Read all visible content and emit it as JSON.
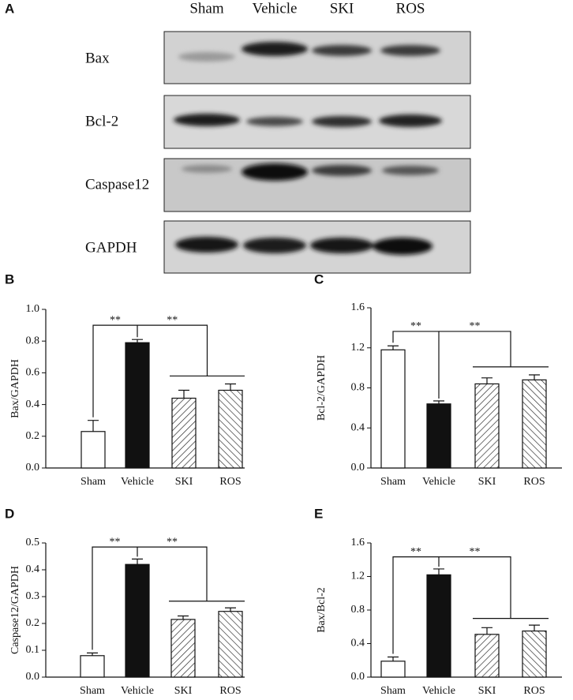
{
  "blot": {
    "panel_label": "A",
    "lanes": [
      "Sham",
      "Vehicle",
      "SKI",
      "ROS"
    ],
    "rows": [
      "Bax",
      "Bcl-2",
      "Caspase12",
      "GAPDH"
    ]
  },
  "chart_data": [
    {
      "type": "bar",
      "panel_label": "B",
      "ylabel": "Bax/GAPDH",
      "categories": [
        "Sham",
        "Vehicle",
        "SKI",
        "ROS"
      ],
      "values": [
        0.23,
        0.79,
        0.44,
        0.49
      ],
      "errors": [
        0.07,
        0.02,
        0.05,
        0.04
      ],
      "colors": [
        "#ffffff",
        "#111111",
        "#ffffff",
        "#ffffff"
      ],
      "hatch": [
        null,
        null,
        "down",
        "up"
      ],
      "ylim": [
        0,
        1.0
      ],
      "yticks": [
        {
          "value": 0,
          "label": "0.0"
        },
        {
          "value": 0.2,
          "label": "0.2"
        },
        {
          "value": 0.4,
          "label": "0.4"
        },
        {
          "value": 0.6,
          "label": "0.6"
        },
        {
          "value": 0.8,
          "label": "0.8"
        },
        {
          "value": 1.0,
          "label": "1.0"
        }
      ],
      "annotations": [
        "**",
        "**"
      ]
    },
    {
      "type": "bar",
      "panel_label": "C",
      "ylabel": "Bcl-2/GAPDH",
      "categories": [
        "Sham",
        "Vehicle",
        "SKI",
        "ROS"
      ],
      "values": [
        1.18,
        0.64,
        0.84,
        0.88
      ],
      "errors": [
        0.04,
        0.03,
        0.06,
        0.05
      ],
      "colors": [
        "#ffffff",
        "#111111",
        "#ffffff",
        "#ffffff"
      ],
      "hatch": [
        null,
        null,
        "down",
        "up"
      ],
      "ylim": [
        0,
        1.6
      ],
      "yticks": [
        {
          "value": 0,
          "label": "0.0"
        },
        {
          "value": 0.4,
          "label": "0.4"
        },
        {
          "value": 0.8,
          "label": "0.8"
        },
        {
          "value": 1.2,
          "label": "1.2"
        },
        {
          "value": 1.6,
          "label": "1.6"
        }
      ],
      "annotations": [
        "**",
        "**"
      ]
    },
    {
      "type": "bar",
      "panel_label": "D",
      "ylabel": "Caspase12/GAPDH",
      "categories": [
        "Sham",
        "Vehicle",
        "SKI",
        "ROS"
      ],
      "values": [
        0.08,
        0.42,
        0.215,
        0.245
      ],
      "errors": [
        0.01,
        0.02,
        0.013,
        0.013
      ],
      "colors": [
        "#ffffff",
        "#111111",
        "#ffffff",
        "#ffffff"
      ],
      "hatch": [
        null,
        null,
        "down",
        "up"
      ],
      "ylim": [
        0,
        0.5
      ],
      "yticks": [
        {
          "value": 0,
          "label": "0.0"
        },
        0.1,
        0.2,
        0.3,
        0.4,
        0.5
      ],
      "annotations": [
        "**",
        "**"
      ]
    },
    {
      "type": "bar",
      "panel_label": "E",
      "ylabel": "Bax/Bcl-2",
      "categories": [
        "Sham",
        "Vehicle",
        "SKI",
        "ROS"
      ],
      "values": [
        0.19,
        1.22,
        0.51,
        0.55
      ],
      "errors": [
        0.05,
        0.07,
        0.08,
        0.07
      ],
      "colors": [
        "#ffffff",
        "#111111",
        "#ffffff",
        "#ffffff"
      ],
      "hatch": [
        null,
        null,
        "down",
        "up"
      ],
      "ylim": [
        0,
        1.6
      ],
      "yticks": [
        {
          "value": 0,
          "label": "0.0"
        },
        {
          "value": 0.4,
          "label": "0.4"
        },
        {
          "value": 0.8,
          "label": "0.8"
        },
        {
          "value": 1.2,
          "label": "1.2"
        },
        {
          "value": 1.6,
          "label": "1.6"
        }
      ],
      "annotations": [
        "**",
        "**"
      ]
    }
  ]
}
